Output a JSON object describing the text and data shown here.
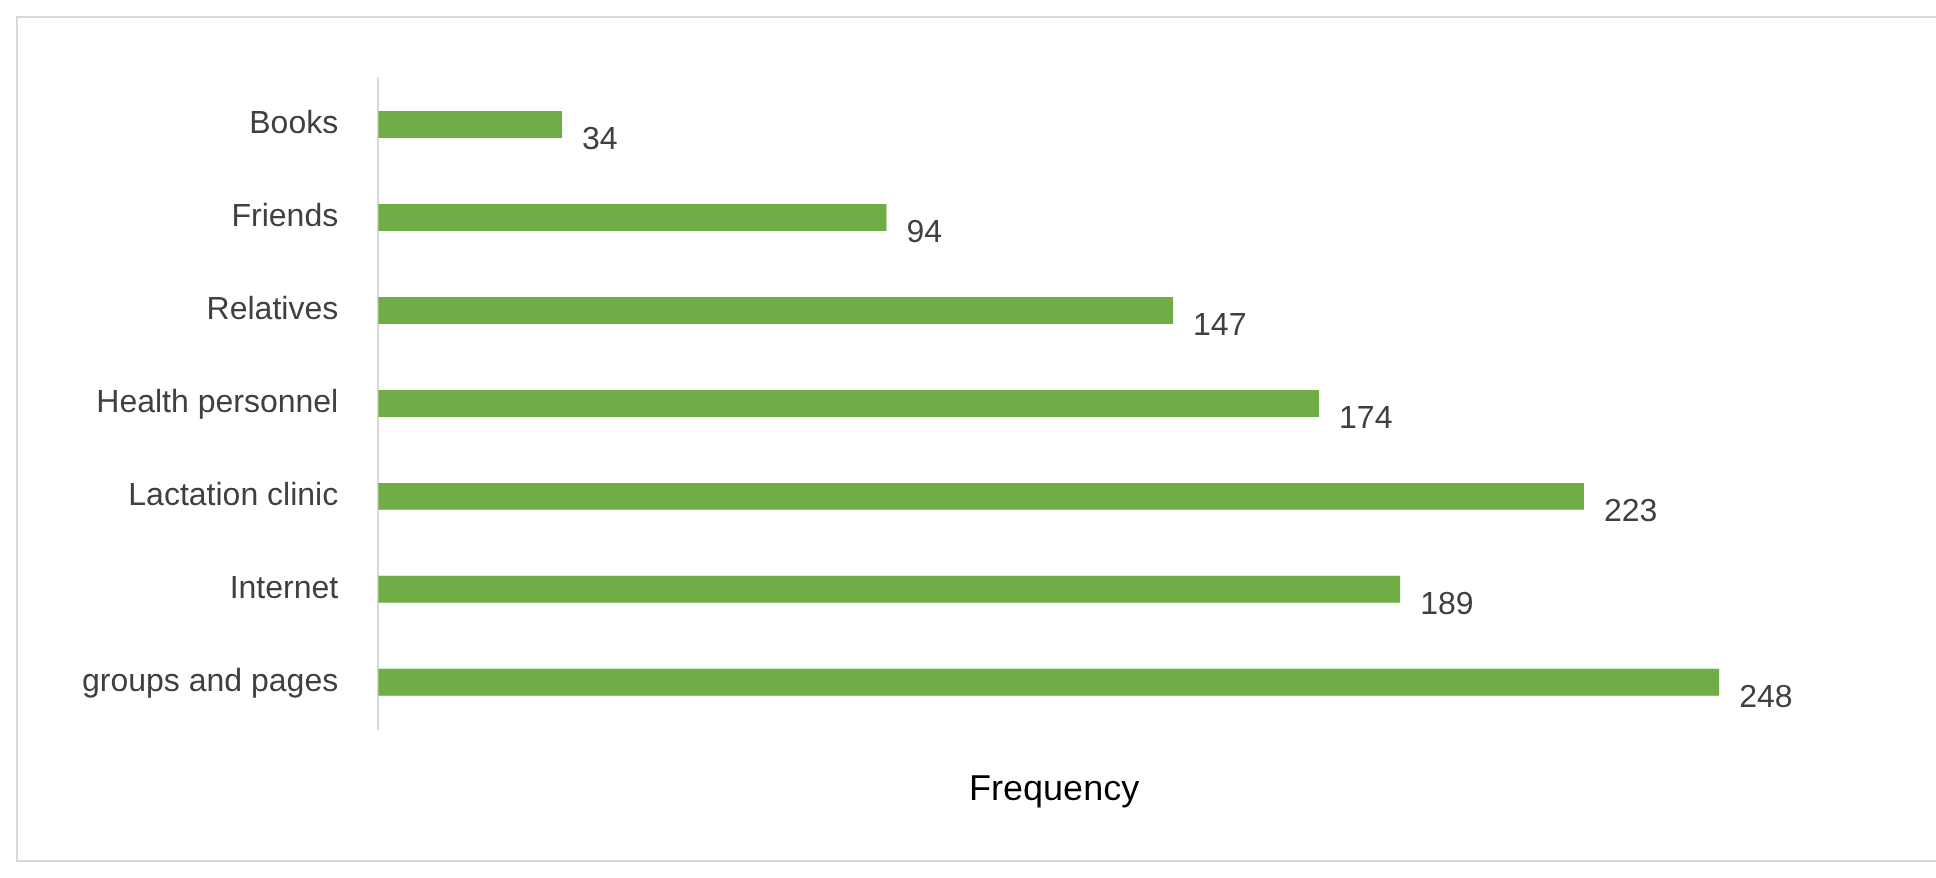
{
  "chart_data": {
    "type": "bar",
    "orientation": "horizontal",
    "xlabel": "Frequency",
    "categories": [
      "Books",
      "Friends",
      "Relatives",
      "Health personnel",
      "Lactation clinic",
      "Internet",
      "groups and pages"
    ],
    "values": [
      34,
      94,
      147,
      174,
      223,
      189,
      248
    ],
    "color": "#70ad47",
    "data_labels": true,
    "grid": false,
    "legend": false,
    "tick_labels": "y"
  }
}
